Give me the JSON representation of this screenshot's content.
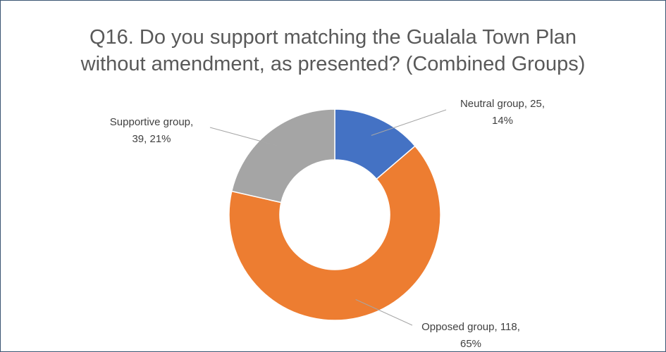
{
  "chart_data": {
    "type": "pie",
    "variant": "donut",
    "title_line1": "Q16. Do you support matching the Gualala Town Plan",
    "title_line2": "without amendment, as presented? (Combined Groups)",
    "slices": [
      {
        "category": "Neutral group",
        "value": 25,
        "percent": "14%",
        "label_line1": "Neutral group, 25,",
        "label_line2": "14%",
        "color": "#4472c4"
      },
      {
        "category": "Opposed group",
        "value": 118,
        "percent": "65%",
        "label_line1": "Opposed group, 118,",
        "label_line2": "65%",
        "color": "#ed7d31"
      },
      {
        "category": "Supportive group",
        "value": 39,
        "percent": "21%",
        "label_line1": "Supportive group,",
        "label_line2": "39, 21%",
        "color": "#a5a5a5"
      }
    ],
    "legend": "none",
    "data_labels": "outside with leader lines"
  }
}
